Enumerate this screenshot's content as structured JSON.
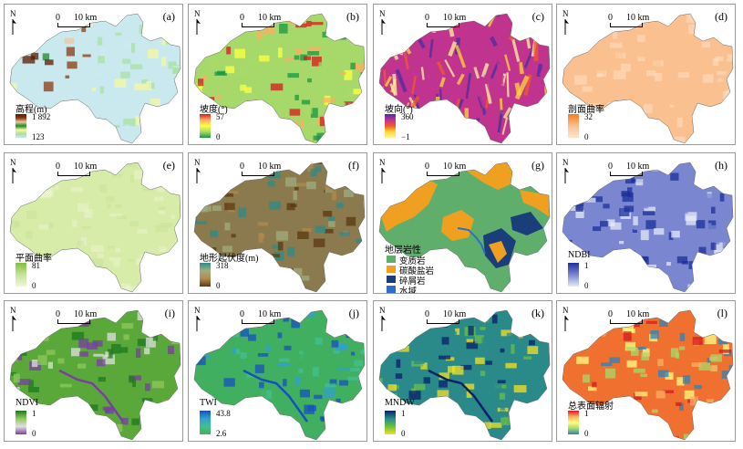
{
  "scale": {
    "zero": "0",
    "ten": "10 km"
  },
  "north_label": "N",
  "panels": [
    {
      "letter": "(a)",
      "title": "高程(m)",
      "max": "1 892",
      "min": "123",
      "ramp": [
        "#5a1a00",
        "#8b3a10",
        "#e8c9a0",
        "#1e8a2a",
        "#f7f7a0",
        "#a8e0a0",
        "#c9e9ee"
      ],
      "fill": "dem"
    },
    {
      "letter": "(b)",
      "title": "坡度(°)",
      "max": "57",
      "min": "0",
      "ramp": [
        "#d7191c",
        "#fdae61",
        "#ffff40",
        "#a6d96a",
        "#1a9641"
      ],
      "fill": "slope"
    },
    {
      "letter": "(c)",
      "title": "坡向(°)",
      "max": "360",
      "min": "−1",
      "ramp": [
        "#4b2d9e",
        "#c0348f",
        "#f05a2a",
        "#fdd835",
        "#fff59d"
      ],
      "fill": "aspect"
    },
    {
      "letter": "(d)",
      "title": "剖面曲率",
      "max": "32",
      "min": "0",
      "ramp": [
        "#f47b20",
        "#fbc08f",
        "#fde6d0"
      ],
      "fill": "curv"
    },
    {
      "letter": "(e)",
      "title": "平面曲率",
      "max": "81",
      "min": "0",
      "ramp": [
        "#7fbf3f",
        "#c7e39a",
        "#f0f7d8"
      ],
      "fill": "plan"
    },
    {
      "letter": "(f)",
      "title": "地形起伏度(m)",
      "max": "318",
      "min": "0",
      "ramp": [
        "#2e8b8b",
        "#9fae7f",
        "#b08a4e",
        "#5c3a10"
      ],
      "fill": "relief"
    },
    {
      "letter": "(g)",
      "title": "地层岩性",
      "max": "",
      "min": "",
      "ramp": [],
      "fill": "geo",
      "categories": [
        {
          "label": "变质岩",
          "color": "#5fae6c"
        },
        {
          "label": "碳酸盐岩",
          "color": "#f0a020"
        },
        {
          "label": "碎屑岩",
          "color": "#1a3e7a"
        },
        {
          "label": "水域",
          "color": "#2a70c8"
        }
      ]
    },
    {
      "letter": "(h)",
      "title": "NDBI",
      "max": "1",
      "min": "0",
      "ramp": [
        "#1c2f9a",
        "#7a86d0",
        "#e6e9f8"
      ],
      "fill": "ndbi"
    },
    {
      "letter": "(i)",
      "title": "NDVI",
      "max": "1",
      "min": "0",
      "ramp": [
        "#1e7a1e",
        "#8fc85a",
        "#e0e0e0",
        "#7a3fa0"
      ],
      "fill": "ndvi"
    },
    {
      "letter": "(j)",
      "title": "TWI",
      "max": "43.8",
      "min": "2.6",
      "ramp": [
        "#1550c0",
        "#30a0d0",
        "#40c090",
        "#40b060"
      ],
      "fill": "twi"
    },
    {
      "letter": "(k)",
      "title": "MNDW",
      "max": "1",
      "min": "0",
      "ramp": [
        "#0a1f6a",
        "#2a8a8a",
        "#6ac040",
        "#f5e020"
      ],
      "fill": "mndw"
    },
    {
      "letter": "(l)",
      "title": "总表面辐射",
      "max": "1",
      "min": "0",
      "ramp": [
        "#d7191c",
        "#fdae61",
        "#ffff80",
        "#a6d96a",
        "#2b83ba"
      ],
      "fill": "rad"
    }
  ]
}
